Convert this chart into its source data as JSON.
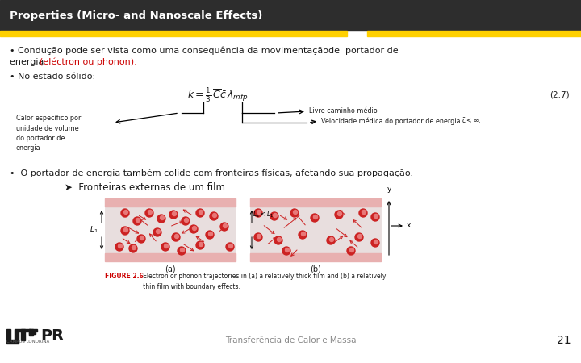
{
  "bg_color": "#ffffff",
  "header_bg": "#2d2d2d",
  "yellow_bar_color": "#FFD000",
  "title_text": "Properties (Micro- and Nanoscale Effects)",
  "bullet1_line1": "• Condução pode ser vista como uma consequência da movimentaçãode  portador de",
  "bullet1_line2_black": "energia ",
  "bullet1_line2_red": "(eléctron ou phonon).",
  "bullet2": "• No estado sólido:",
  "eq_label": "(2.7)",
  "label_left": "Calor específico por\nunidade de volume\ndo portador de\nenergia",
  "label_right_top": "Livre caminho médio",
  "label_right_bot": "Velocidade médica do portador de energia",
  "label_right_bot2": "$\\bar{c} < \\infty$.",
  "bullet3_black": "•  O portador de energia também colide com fronteiras físicas, afetando sua propagação.",
  "bullet3_indent": "➤  Fronteiras externas de um film",
  "fig_caption_red": "FIGURE 2.6",
  "fig_caption_black": "   Electron or phonon trajectories in (a) a relatively thick film and (b) a relatively\n   thin film with boundary effects.",
  "footer_text": "Transferência de Calor e Massa",
  "page_number": "21",
  "header_text_color": "#ffffff",
  "body_text_color": "#1a1a1a",
  "red_color": "#cc0000",
  "footer_color": "#888888",
  "img_bg": "#f0e8e8",
  "img_top_pink": "#e8b0b0"
}
